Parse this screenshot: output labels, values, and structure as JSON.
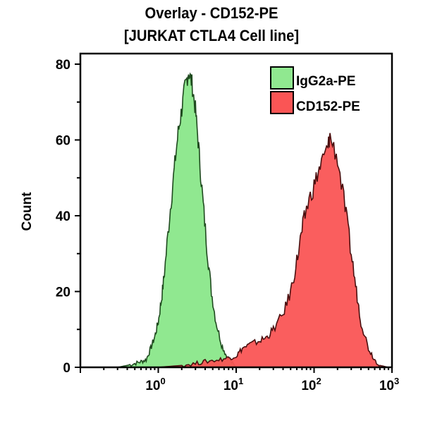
{
  "chart_data": {
    "type": "area",
    "title": "Overlay - CD152-PE",
    "subtitle": "[JURKAT CTLA4 Cell line]",
    "xlabel": "",
    "ylabel": "Count",
    "xscale": "log",
    "xlim": [
      0.1,
      1000
    ],
    "ylim": [
      0,
      80
    ],
    "y_ticks": [
      "0",
      "20",
      "40",
      "60",
      "80"
    ],
    "x_ticks": [
      {
        "base": "10",
        "exp": "0"
      },
      {
        "base": "10",
        "exp": "1"
      },
      {
        "base": "10",
        "exp": "2"
      },
      {
        "base": "10",
        "exp": "3"
      }
    ],
    "legend_position": "top-right",
    "grid": false,
    "series": [
      {
        "name": "IgG2a-PE",
        "fill": "#90e890",
        "stroke": "#1f4a1f",
        "x": [
          0.3,
          0.4,
          0.5,
          0.6,
          0.7,
          0.8,
          0.9,
          1.0,
          1.1,
          1.2,
          1.4,
          1.6,
          1.8,
          2.0,
          2.2,
          2.45,
          2.7,
          3.0,
          3.3,
          3.7,
          4.2,
          4.8,
          5.5,
          6.5,
          7.5,
          9,
          10
        ],
        "y": [
          0,
          0.5,
          1,
          1.5,
          2,
          5,
          8,
          12,
          18,
          25,
          40,
          52,
          62,
          68,
          74,
          78,
          75,
          68,
          58,
          45,
          32,
          20,
          12,
          6,
          3,
          1,
          0
        ]
      },
      {
        "name": "CD152-PE",
        "fill": "#fa5555",
        "stroke": "#4a0f0f",
        "x": [
          1,
          2,
          3,
          4,
          6,
          8,
          10,
          12,
          15,
          20,
          25,
          30,
          40,
          50,
          60,
          70,
          80,
          100,
          120,
          150,
          160,
          200,
          250,
          300,
          350,
          400,
          500,
          600,
          700,
          900
        ],
        "y": [
          0,
          0.5,
          1,
          1.5,
          2,
          2.5,
          3,
          5,
          6,
          7,
          8,
          10,
          14,
          20,
          28,
          36,
          42,
          48,
          53,
          58,
          61,
          55,
          42,
          30,
          20,
          12,
          5,
          2,
          0.5,
          0
        ]
      }
    ]
  }
}
